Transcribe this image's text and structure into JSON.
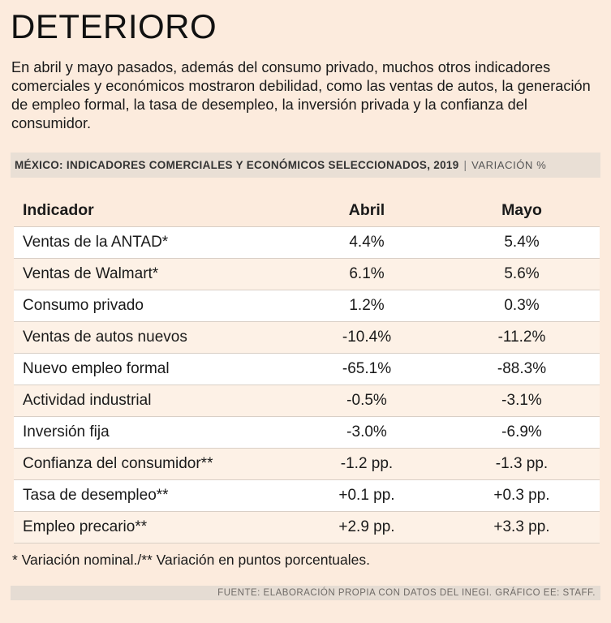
{
  "title": "DETERIORO",
  "intro": "En abril y mayo pasados, además del consumo privado, muchos otros indicadores comerciales y económicos mostraron debilidad, como las ventas de autos, la generación de empleo formal, la tasa de desempleo, la inversión privada y la confianza del consumidor.",
  "section": {
    "title": "MÉXICO: INDICADORES COMERCIALES Y ECONÓMICOS SELECCIONADOS, 2019",
    "separator": "|",
    "subtitle": "VARIACIÓN %"
  },
  "colors": {
    "background": "#fcebdd",
    "band": "#ffffff",
    "bar": "#e9dfd5"
  },
  "chart_data": {
    "type": "table",
    "title": "MÉXICO: INDICADORES COMERCIALES Y ECONÓMICOS SELECCIONADOS, 2019",
    "columns": [
      "Indicador",
      "Abril",
      "Mayo"
    ],
    "rows": [
      {
        "indicador": "Ventas de la ANTAD*",
        "abril": "4.4%",
        "mayo": "5.4%"
      },
      {
        "indicador": "Ventas de Walmart*",
        "abril": "6.1%",
        "mayo": "5.6%"
      },
      {
        "indicador": "Consumo privado",
        "abril": "1.2%",
        "mayo": "0.3%"
      },
      {
        "indicador": "Ventas de autos nuevos",
        "abril": "-10.4%",
        "mayo": "-11.2%"
      },
      {
        "indicador": "Nuevo empleo formal",
        "abril": "-65.1%",
        "mayo": "-88.3%"
      },
      {
        "indicador": "Actividad industrial",
        "abril": "-0.5%",
        "mayo": "-3.1%"
      },
      {
        "indicador": "Inversión fija",
        "abril": "-3.0%",
        "mayo": "-6.9%"
      },
      {
        "indicador": "Confianza del consumidor**",
        "abril": "-1.2 pp.",
        "mayo": "-1.3 pp."
      },
      {
        "indicador": "Tasa de desempleo**",
        "abril": "+0.1 pp.",
        "mayo": "+0.3 pp."
      },
      {
        "indicador": "Empleo precario**",
        "abril": "+2.9 pp.",
        "mayo": "+3.3 pp."
      }
    ]
  },
  "note": "* Variación nominal./** Variación en puntos porcentuales.",
  "source": "FUENTE: ELABORACIÓN PROPIA CON DATOS DEL INEGI. GRÁFICO EE: STAFF."
}
